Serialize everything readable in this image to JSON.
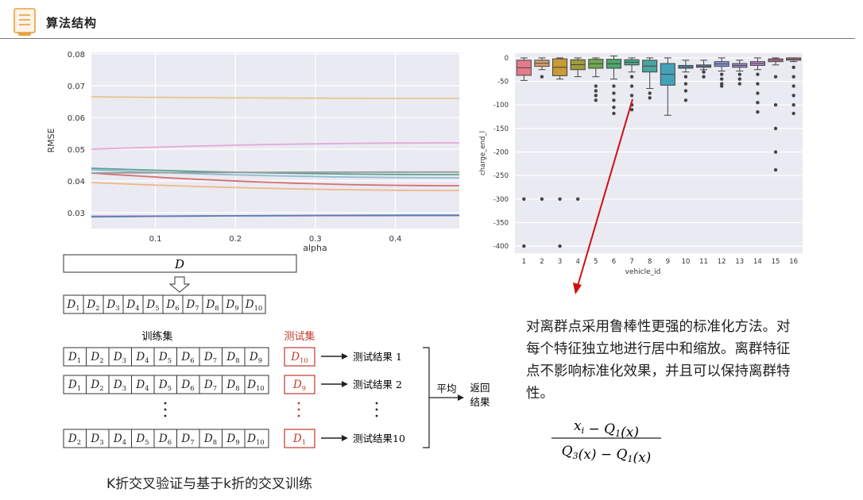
{
  "header": {
    "title": "算法结构"
  },
  "chart_rmse": {
    "type": "line",
    "ylabel": "RMSE",
    "xlabel": "alpha",
    "yticks": [
      "0.08",
      "0.07",
      "0.06",
      "0.05",
      "0.04",
      "0.03"
    ],
    "xticks": [
      "0.1",
      "0.2",
      "0.3",
      "0.4"
    ],
    "ylim": [
      0.025,
      0.0805
    ],
    "xlim": [
      0.02,
      0.48
    ],
    "series": [
      {
        "color": "#e5c78e",
        "y0": 0.0665,
        "y1": 0.066
      },
      {
        "color": "#e3a8d8",
        "y0": 0.05,
        "y1": 0.052
      },
      {
        "color": "#5aa28f",
        "y0": 0.044,
        "y1": 0.042
      },
      {
        "color": "#8fbcd1",
        "y0": 0.0435,
        "y1": 0.041
      },
      {
        "color": "#d66e6e",
        "y0": 0.0425,
        "y1": 0.0385
      },
      {
        "color": "#999999",
        "y0": 0.0425,
        "y1": 0.0428
      },
      {
        "color": "#f0b788",
        "y0": 0.0395,
        "y1": 0.037
      },
      {
        "color": "#c7b2d9",
        "y0": 0.029,
        "y1": 0.029
      },
      {
        "color": "#5b7cae",
        "y0": 0.0287,
        "y1": 0.0292
      }
    ]
  },
  "chart_box": {
    "type": "box",
    "xlabel": "vehicle_id",
    "ylabel": "charge_end_l",
    "yticks": [
      "0",
      "-50",
      "-100",
      "-150",
      "-200",
      "-250",
      "-300",
      "-350",
      "-400"
    ],
    "categories": [
      "1",
      "2",
      "3",
      "4",
      "5",
      "6",
      "7",
      "8",
      "9",
      "10",
      "11",
      "12",
      "13",
      "14",
      "15",
      "16"
    ],
    "ylim": [
      -415,
      10
    ],
    "boxes": [
      {
        "q1": -37,
        "q3": -5,
        "lo": -48,
        "hi": 0,
        "color": "#e57b8a",
        "fl": [
          -300,
          -400
        ]
      },
      {
        "q1": -18,
        "q3": -5,
        "lo": -25,
        "hi": 0,
        "color": "#d8a06a",
        "fl": [
          -40,
          -300
        ]
      },
      {
        "q1": -38,
        "q3": -2,
        "lo": -45,
        "hi": 0,
        "color": "#c99a35",
        "fl": [
          -300,
          -400
        ]
      },
      {
        "q1": -25,
        "q3": -4,
        "lo": -40,
        "hi": 0,
        "color": "#9f9b3a",
        "fl": [
          -300
        ]
      },
      {
        "q1": -22,
        "q3": -3,
        "lo": -40,
        "hi": 0,
        "color": "#6ea84b",
        "fl": [
          -60,
          -70,
          -80,
          -90
        ]
      },
      {
        "q1": -22,
        "q3": -3,
        "lo": -45,
        "hi": 4,
        "color": "#4aa86a",
        "fl": [
          -60,
          -75,
          -90,
          -105,
          -118
        ]
      },
      {
        "q1": -15,
        "q3": -4,
        "lo": -30,
        "hi": 0,
        "color": "#4aa88a",
        "fl": [
          -40,
          -60,
          -80,
          -100,
          -110
        ]
      },
      {
        "q1": -30,
        "q3": -5,
        "lo": -65,
        "hi": 0,
        "color": "#4aa5a0",
        "fl": [
          -75,
          -85
        ]
      },
      {
        "q1": -58,
        "q3": -12,
        "lo": -122,
        "hi": 0,
        "color": "#44a2b8",
        "fl": []
      },
      {
        "q1": -22,
        "q3": -16,
        "lo": -30,
        "hi": -5,
        "color": "#4aa0c8",
        "fl": [
          -40,
          -55,
          -70,
          -90
        ]
      },
      {
        "q1": -20,
        "q3": -15,
        "lo": -25,
        "hi": -5,
        "color": "#6a9ad8",
        "fl": [
          -30,
          -40
        ]
      },
      {
        "q1": -18,
        "q3": -8,
        "lo": -28,
        "hi": 0,
        "color": "#8a94e0",
        "fl": [
          -35,
          -45,
          -55,
          -60
        ]
      },
      {
        "q1": -20,
        "q3": -12,
        "lo": -28,
        "hi": -5,
        "color": "#a28cd8",
        "fl": [
          -35,
          -45,
          -55
        ]
      },
      {
        "q1": -16,
        "q3": -8,
        "lo": -25,
        "hi": 0,
        "color": "#c285d0",
        "fl": [
          -35,
          -55,
          -75,
          -95,
          -115
        ]
      },
      {
        "q1": -8,
        "q3": -2,
        "lo": -15,
        "hi": 0,
        "color": "#d986b8",
        "fl": [
          -40,
          -100,
          -150,
          -200,
          -238
        ]
      },
      {
        "q1": -5,
        "q3": 0,
        "lo": -8,
        "hi": 0,
        "color": "#e58a9c",
        "fl": [
          -20,
          -40,
          -60,
          -80,
          -100,
          -118
        ]
      }
    ]
  },
  "cv": {
    "D": "D",
    "split_labels": [
      "D1",
      "D2",
      "D3",
      "D4",
      "D5",
      "D6",
      "D7",
      "D8",
      "D9",
      "D10"
    ],
    "train_label": "训练集",
    "test_label": "测试集",
    "rows": [
      {
        "train": [
          "D1",
          "D2",
          "D3",
          "D4",
          "D5",
          "D6",
          "D7",
          "D8",
          "D9"
        ],
        "test": "D10",
        "result": "测试结果 1"
      },
      {
        "train": [
          "D1",
          "D2",
          "D3",
          "D4",
          "D5",
          "D6",
          "D7",
          "D8",
          "D10"
        ],
        "test": "D9",
        "result": "测试结果 2"
      },
      {
        "train": [
          "D2",
          "D3",
          "D4",
          "D5",
          "D6",
          "D7",
          "D8",
          "D9",
          "D10"
        ],
        "test": "D1",
        "result": "测试结果10"
      }
    ],
    "avg_label": "平均",
    "return_label_1": "返回",
    "return_label_2": "结果"
  },
  "explanation": "对离群点采用鲁棒性更强的标准化方法。对每个特征独立地进行居中和缩放。离群特征点不影响标准化效果，并且可以保持离群特性。",
  "formula": {
    "numerator": "x_i − Q_1(x)",
    "denominator": "Q_3(x) − Q_1(x)"
  },
  "caption": "K折交叉验证与基于k折的交叉训练",
  "colors": {
    "arrow": "#cc1111",
    "test_box": "#c0392b",
    "chart_bg": "#eaeaf2"
  }
}
